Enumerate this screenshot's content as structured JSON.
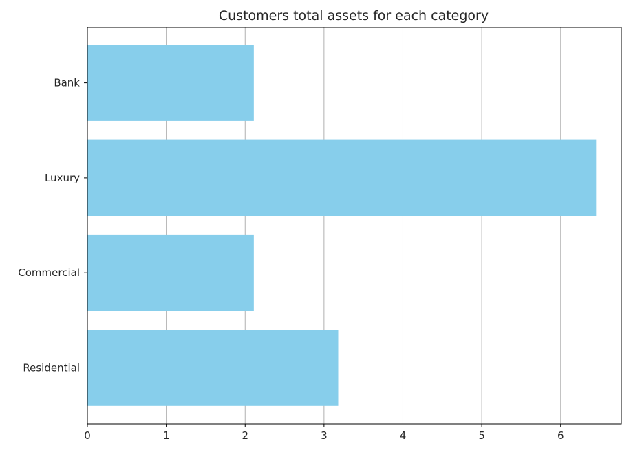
{
  "chart_data": {
    "type": "bar",
    "orientation": "horizontal",
    "title": "Customers total assets for each category",
    "xlabel": "",
    "ylabel": "",
    "categories": [
      "Residential",
      "Commercial",
      "Luxury",
      "Bank"
    ],
    "values": [
      3.18,
      2.11,
      6.45,
      2.11
    ],
    "xlim": [
      0,
      6.77
    ],
    "xticks": [
      "0",
      "1",
      "2",
      "3",
      "4",
      "5",
      "6"
    ],
    "grid": "vertical",
    "bar_color": "#87CEEB",
    "legend": "none"
  }
}
